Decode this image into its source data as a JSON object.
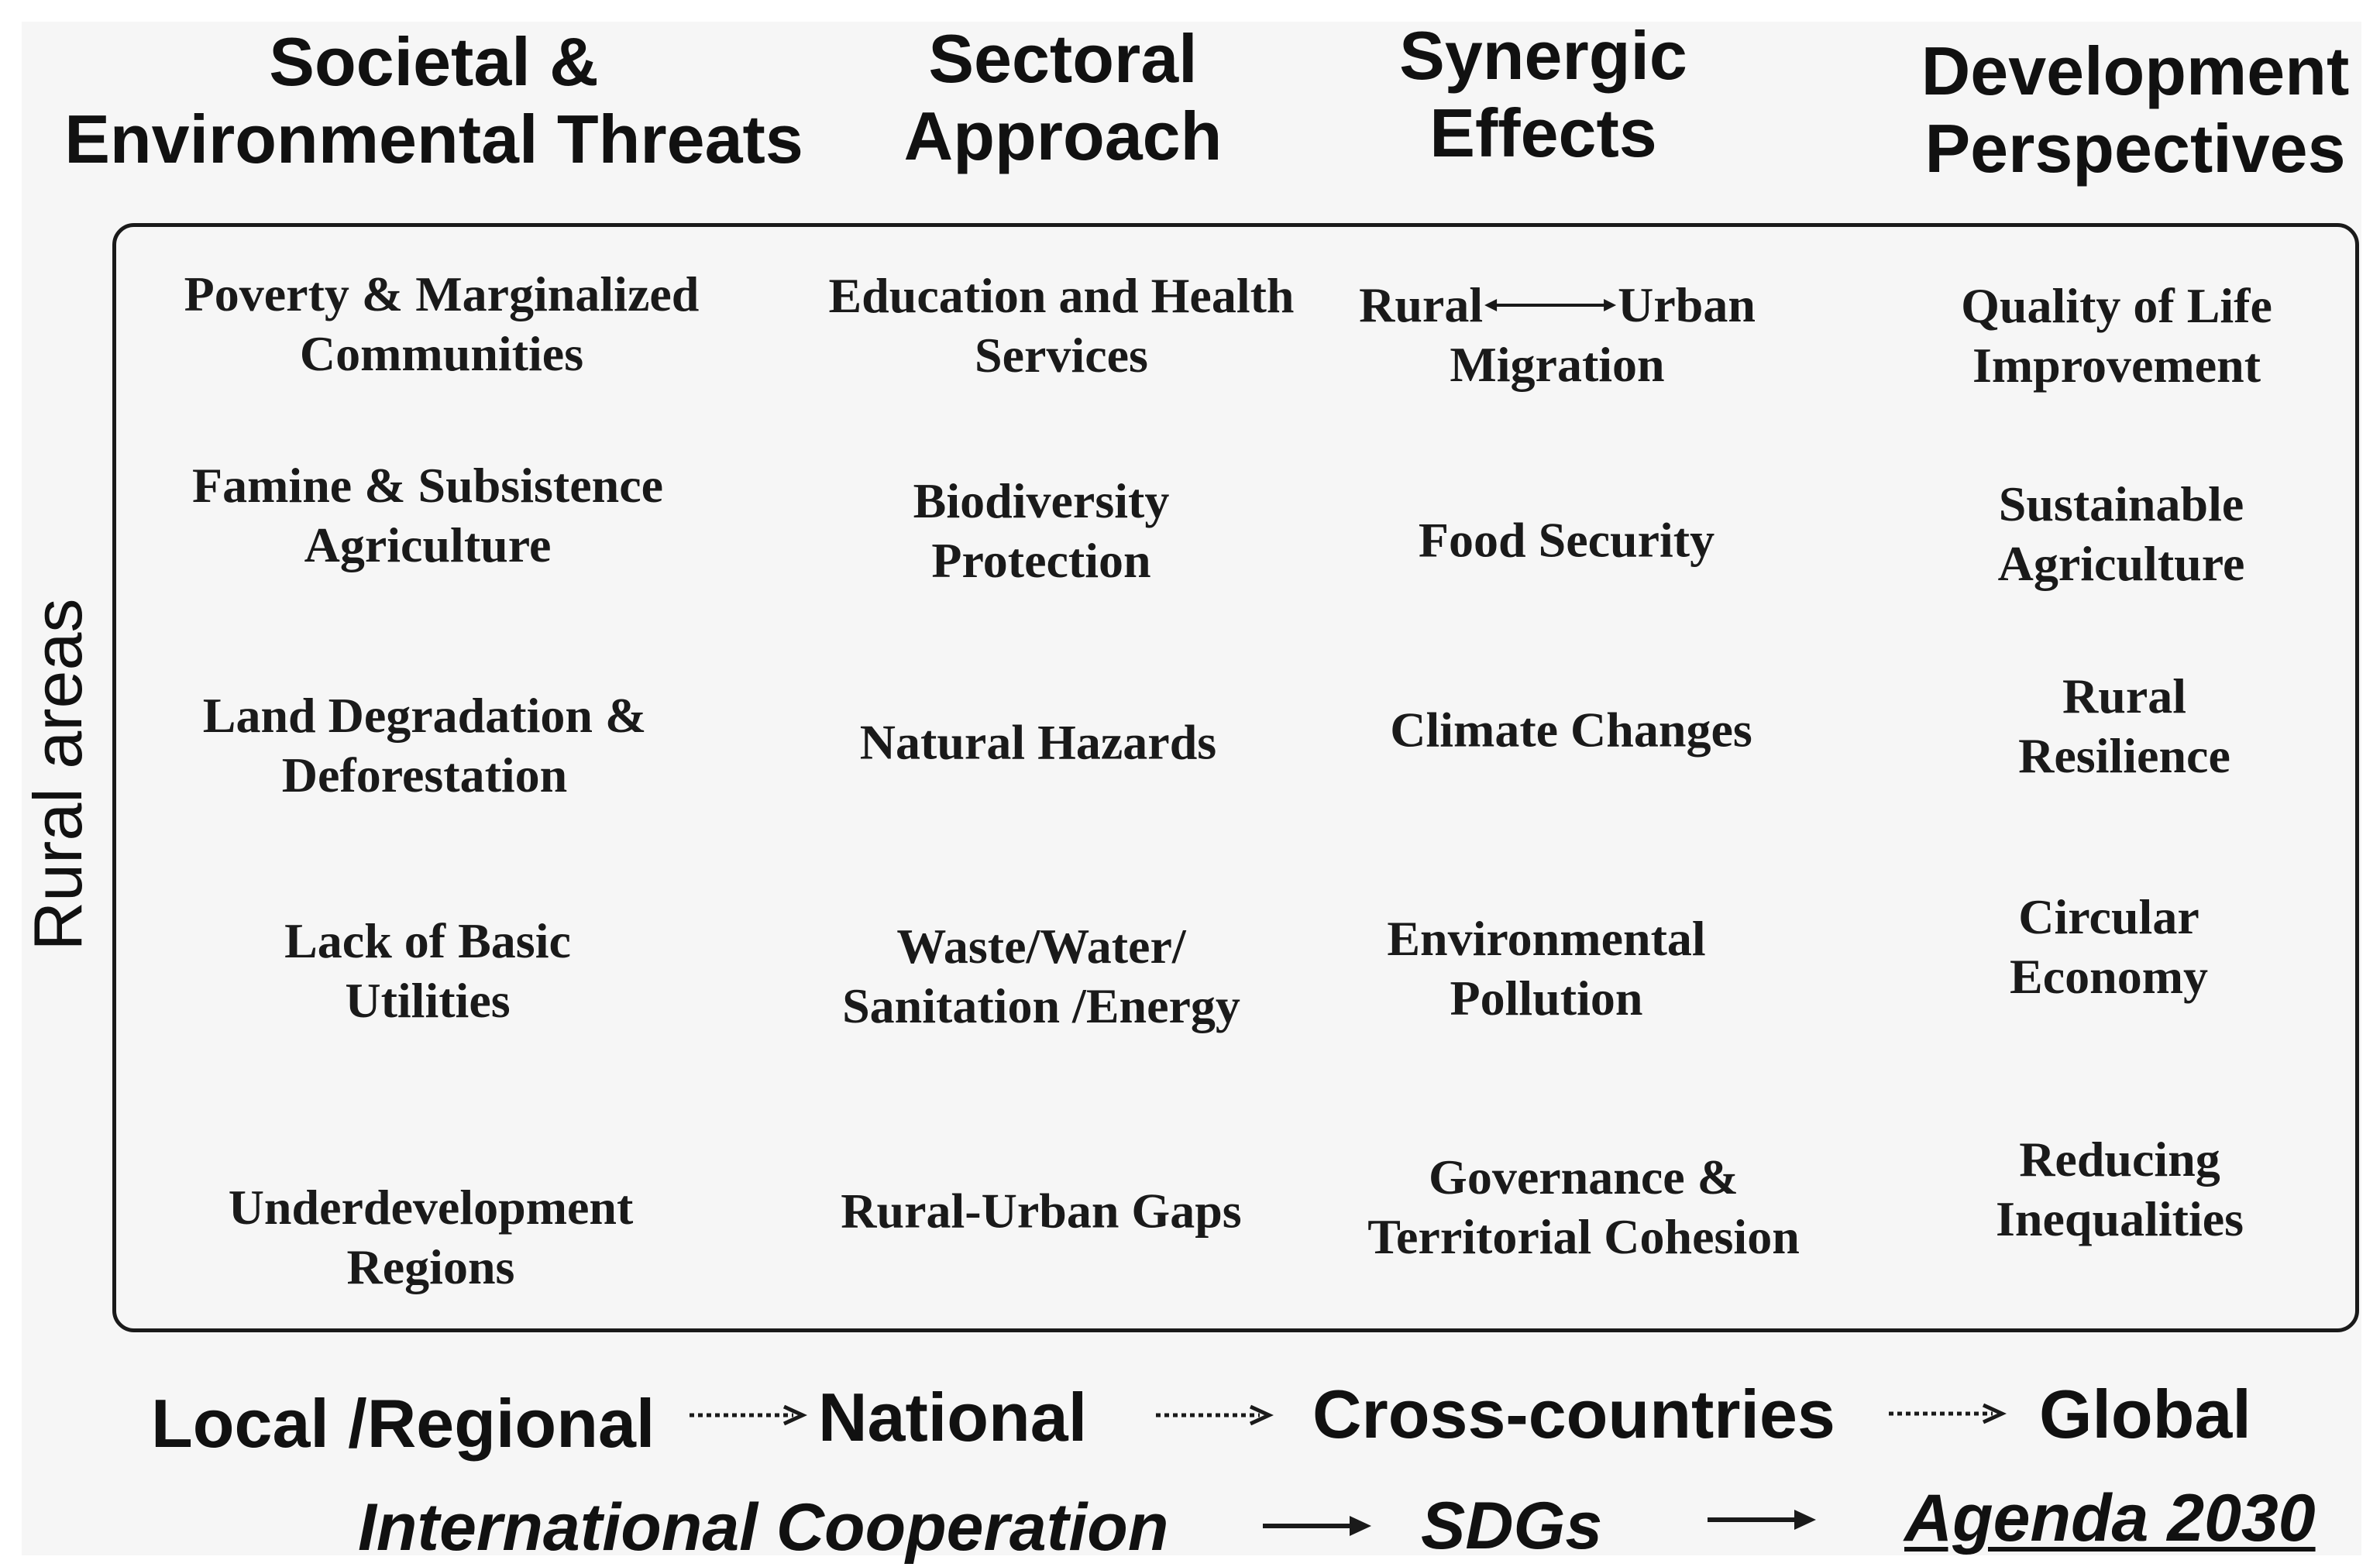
{
  "headers": [
    {
      "line1": "Societal &",
      "line2": "Environmental Threats"
    },
    {
      "line1": "Sectoral",
      "line2": "Approach"
    },
    {
      "line1": "Synergic",
      "line2": "Effects"
    },
    {
      "line1": "Development",
      "line2": "Perspectives"
    }
  ],
  "row_label": "Rural areas",
  "matrix": {
    "col1": [
      {
        "line1": "Poverty & Marginalized",
        "line2": "Communities"
      },
      {
        "line1": "Famine & Subsistence",
        "line2": "Agriculture"
      },
      {
        "line1": "Land Degradation &",
        "line2": "Deforestation"
      },
      {
        "line1": "Lack of Basic",
        "line2": "Utilities"
      },
      {
        "line1": "Underdevelopment",
        "line2": "Regions"
      }
    ],
    "col2": [
      {
        "line1": "Education and Health",
        "line2": "Services"
      },
      {
        "line1": "Biodiversity",
        "line2": "Protection"
      },
      {
        "line1": "Natural Hazards",
        "line2": ""
      },
      {
        "line1": "Waste/Water/",
        "line2": "Sanitation /Energy"
      },
      {
        "line1": "Rural-Urban Gaps",
        "line2": ""
      }
    ],
    "col3": [
      {
        "left": "Rural",
        "right": "Urban",
        "line2": "Migration"
      },
      {
        "line1": "Food Security",
        "line2": ""
      },
      {
        "line1": "Climate Changes",
        "line2": ""
      },
      {
        "line1": "Environmental",
        "line2": "Pollution"
      },
      {
        "line1": "Governance &",
        "line2": "Territorial Cohesion"
      }
    ],
    "col4": [
      {
        "line1": "Quality of Life",
        "line2": "Improvement"
      },
      {
        "line1": "Sustainable",
        "line2": "Agriculture"
      },
      {
        "line1": "Rural",
        "line2": "Resilience"
      },
      {
        "line1": "Circular",
        "line2": "Economy"
      },
      {
        "line1": "Reducing",
        "line2": "Inequalities"
      }
    ]
  },
  "scale": [
    "Local /Regional",
    "National",
    "Cross-countries",
    "Global"
  ],
  "cooperation": [
    "International Cooperation",
    "SDGs",
    "Agenda 2030"
  ],
  "colors": {
    "text": "#111111",
    "box_border": "#1a1a1a",
    "background": "#f6f6f6"
  }
}
